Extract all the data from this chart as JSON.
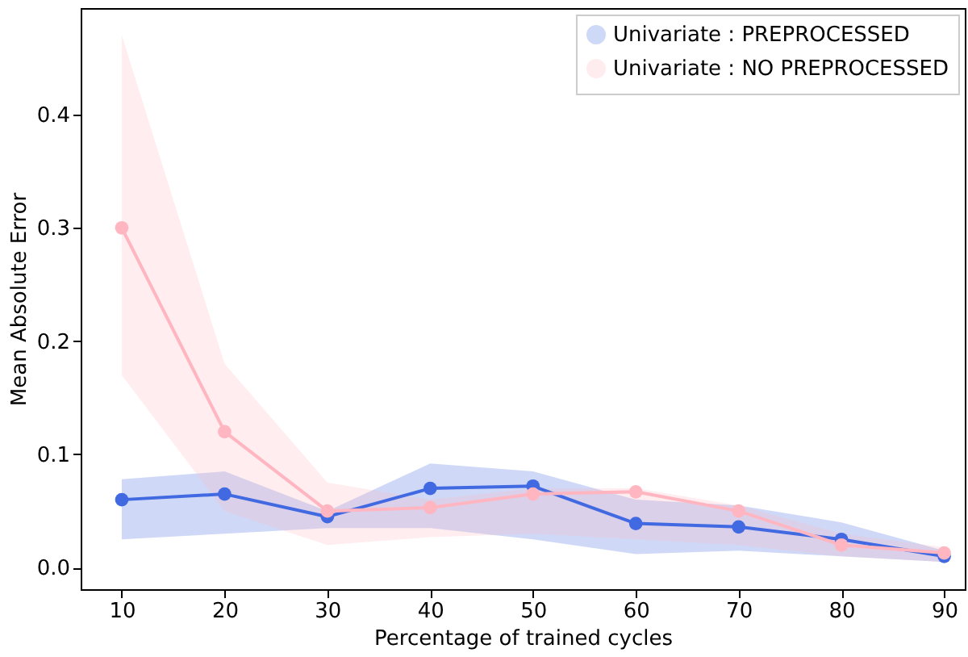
{
  "chart_data": {
    "type": "line",
    "xlabel": "Percentage of trained cycles",
    "ylabel": "Mean Absolute Error",
    "x": [
      10,
      20,
      30,
      40,
      50,
      60,
      70,
      80,
      90
    ],
    "series": [
      {
        "name": "Univariate : PREPROCESSED",
        "color": "#4169e1",
        "values": [
          0.06,
          0.065,
          0.045,
          0.07,
          0.072,
          0.039,
          0.036,
          0.025,
          0.01
        ],
        "lower": [
          0.025,
          0.03,
          0.035,
          0.035,
          0.025,
          0.012,
          0.015,
          0.01,
          0.005
        ],
        "upper": [
          0.078,
          0.085,
          0.05,
          0.092,
          0.085,
          0.06,
          0.055,
          0.04,
          0.015
        ]
      },
      {
        "name": "Univariate : NO PREPROCESSED",
        "color": "#ffb6c1",
        "values": [
          0.3,
          0.12,
          0.05,
          0.053,
          0.065,
          0.067,
          0.05,
          0.02,
          0.013
        ],
        "lower": [
          0.17,
          0.05,
          0.02,
          0.027,
          0.03,
          0.025,
          0.02,
          0.01,
          0.005
        ],
        "upper": [
          0.47,
          0.18,
          0.075,
          0.06,
          0.07,
          0.07,
          0.055,
          0.03,
          0.018
        ]
      }
    ],
    "xlim": [
      6,
      92
    ],
    "ylim": [
      -0.019,
      0.494
    ],
    "xticks": [
      10,
      20,
      30,
      40,
      50,
      60,
      70,
      80,
      90
    ],
    "yticks": [
      {
        "value": 0,
        "label": "0.0"
      },
      {
        "value": 0.1,
        "label": "0.1"
      },
      {
        "value": 0.2,
        "label": "0.2"
      },
      {
        "value": 0.3,
        "label": "0.3"
      },
      {
        "value": 0.4,
        "label": "0.4"
      }
    ],
    "legend": "top right",
    "marker": "circle",
    "line_style": "solid",
    "grid": false
  }
}
